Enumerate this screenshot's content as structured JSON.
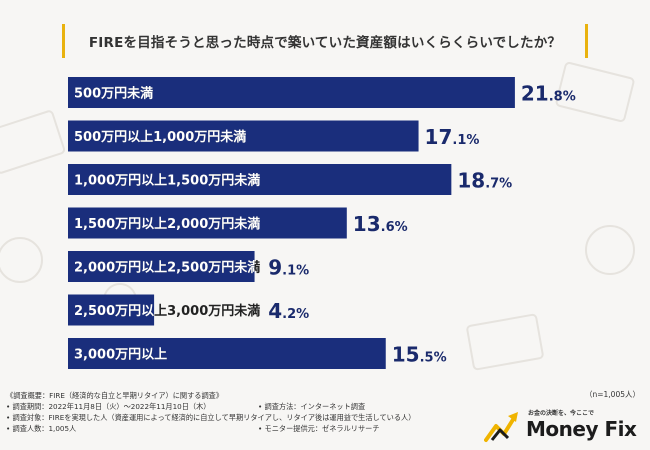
{
  "chart_data": {
    "type": "bar",
    "orientation": "horizontal",
    "title": "FIREを目指そうと思った時点で築いていた資産額はいくらくらいでしたか？",
    "categories": [
      "500万円未満",
      "500万円以上1,000万円未満",
      "1,000万円以上1,500万円未満",
      "1,500万円以上2,000万円未満",
      "2,000万円以上2,500万円未満",
      "2,500万円以上3,000万円未満",
      "3,000万円以上"
    ],
    "values": [
      21.8,
      17.1,
      18.7,
      13.6,
      9.1,
      4.2,
      15.5
    ],
    "value_labels": [
      {
        "int": "21",
        "dec": ".8%"
      },
      {
        "int": "17",
        "dec": ".1%"
      },
      {
        "int": "18",
        "dec": ".7%"
      },
      {
        "int": "13",
        "dec": ".6%"
      },
      {
        "int": "9",
        "dec": ".1%"
      },
      {
        "int": "4",
        "dec": ".2%"
      },
      {
        "int": "15",
        "dec": ".5%"
      }
    ],
    "unit": "%",
    "xlim": [
      0,
      25
    ],
    "bar_color": "#1a2e7c"
  },
  "sample_size": "（n=1,005人）",
  "notes": {
    "overview": "《調査概要：FIRE（経済的な自立と早期リタイア）に関する調査》",
    "period": "• 調査期間：2022年11月8日（火）～2022年11月10日（木）",
    "method": "• 調査方法：インターネット調査",
    "target": "• 調査対象：FIREを実現した人（資産運用によって経済的に自立して早期リタイアし、リタイア後は運用益で生活している人）",
    "count": "• 調査人数：1,005人",
    "provider": "• モニター提供元：ゼネラルリサーチ"
  },
  "logo": {
    "tagline": "お金の決断を、今ここで",
    "name": "Money Fix",
    "accent_color": "#f0b400"
  }
}
